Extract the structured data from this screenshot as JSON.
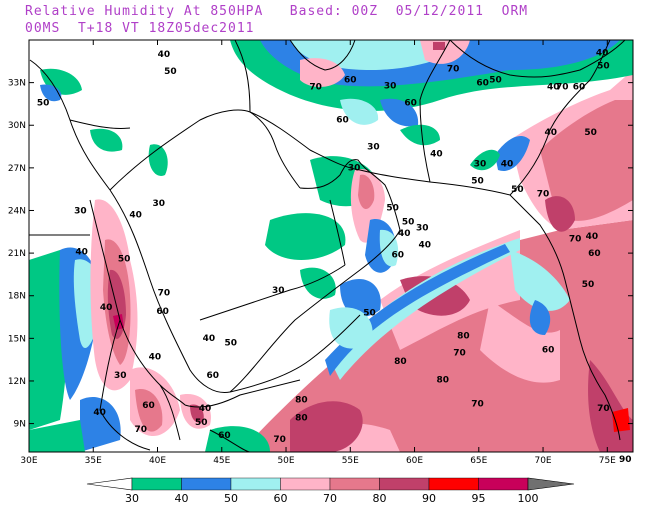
{
  "title": {
    "line1": "Relative Humidity At 850HPA   Based: 00Z  05/12/2011  ORM",
    "line2": "00MS  T+18 VT 18Z05dec2011"
  },
  "map": {
    "lon_range": [
      30,
      77
    ],
    "lat_range": [
      7,
      36
    ],
    "x_ticks": [
      "30E",
      "35E",
      "40E",
      "45E",
      "50E",
      "55E",
      "60E",
      "65E",
      "70E",
      "75E"
    ],
    "y_ticks": [
      "33N",
      "30N",
      "27N",
      "24N",
      "21N",
      "18N",
      "15N",
      "12N",
      "9N"
    ],
    "contour_labels": [
      {
        "t": "40",
        "lon": 40.5,
        "lat": 34.8
      },
      {
        "t": "50",
        "lon": 41.0,
        "lat": 33.6
      },
      {
        "t": "70",
        "lon": 52.3,
        "lat": 32.5
      },
      {
        "t": "60",
        "lon": 55.0,
        "lat": 33.0
      },
      {
        "t": "70",
        "lon": 63.0,
        "lat": 33.8
      },
      {
        "t": "60",
        "lon": 65.3,
        "lat": 32.8
      },
      {
        "t": "50",
        "lon": 66.3,
        "lat": 33.0
      },
      {
        "t": "40",
        "lon": 70.8,
        "lat": 32.5
      },
      {
        "t": "70",
        "lon": 71.5,
        "lat": 32.5
      },
      {
        "t": "60",
        "lon": 72.8,
        "lat": 32.5
      },
      {
        "t": "50",
        "lon": 74.7,
        "lat": 34.0
      },
      {
        "t": "40",
        "lon": 74.6,
        "lat": 34.9
      },
      {
        "t": "50",
        "lon": 31.1,
        "lat": 31.4
      },
      {
        "t": "60",
        "lon": 54.4,
        "lat": 30.2
      },
      {
        "t": "30",
        "lon": 58.1,
        "lat": 32.6
      },
      {
        "t": "60",
        "lon": 59.7,
        "lat": 31.4
      },
      {
        "t": "30",
        "lon": 56.8,
        "lat": 28.3
      },
      {
        "t": "40",
        "lon": 61.7,
        "lat": 27.8
      },
      {
        "t": "30",
        "lon": 65.1,
        "lat": 27.1
      },
      {
        "t": "40",
        "lon": 67.2,
        "lat": 27.1
      },
      {
        "t": "40",
        "lon": 70.6,
        "lat": 29.3
      },
      {
        "t": "50",
        "lon": 73.7,
        "lat": 29.3
      },
      {
        "t": "30",
        "lon": 55.3,
        "lat": 26.8
      },
      {
        "t": "50",
        "lon": 68.0,
        "lat": 25.3
      },
      {
        "t": "30",
        "lon": 34.0,
        "lat": 23.8
      },
      {
        "t": "40",
        "lon": 38.3,
        "lat": 23.5
      },
      {
        "t": "30",
        "lon": 40.1,
        "lat": 24.3
      },
      {
        "t": "50",
        "lon": 64.9,
        "lat": 25.9
      },
      {
        "t": "70",
        "lon": 70.0,
        "lat": 25.0
      },
      {
        "t": "30",
        "lon": 60.6,
        "lat": 22.6
      },
      {
        "t": "40",
        "lon": 34.1,
        "lat": 20.9
      },
      {
        "t": "50",
        "lon": 37.4,
        "lat": 20.4
      },
      {
        "t": "50",
        "lon": 58.3,
        "lat": 24.0
      },
      {
        "t": "50",
        "lon": 59.5,
        "lat": 23.0
      },
      {
        "t": "40",
        "lon": 59.2,
        "lat": 22.2
      },
      {
        "t": "60",
        "lon": 58.7,
        "lat": 20.7
      },
      {
        "t": "40",
        "lon": 60.8,
        "lat": 21.4
      },
      {
        "t": "60",
        "lon": 74.0,
        "lat": 20.8
      },
      {
        "t": "40",
        "lon": 73.8,
        "lat": 22.0
      },
      {
        "t": "70",
        "lon": 72.5,
        "lat": 21.8
      },
      {
        "t": "40",
        "lon": 36.0,
        "lat": 17.0
      },
      {
        "t": "70",
        "lon": 40.5,
        "lat": 18.0
      },
      {
        "t": "30",
        "lon": 49.4,
        "lat": 18.2
      },
      {
        "t": "50",
        "lon": 73.5,
        "lat": 18.6
      },
      {
        "t": "50",
        "lon": 56.5,
        "lat": 16.6
      },
      {
        "t": "80",
        "lon": 63.8,
        "lat": 15.0
      },
      {
        "t": "60",
        "lon": 40.4,
        "lat": 16.7
      },
      {
        "t": "70",
        "lon": 63.5,
        "lat": 13.8
      },
      {
        "t": "60",
        "lon": 70.4,
        "lat": 14.0
      },
      {
        "t": "30",
        "lon": 37.1,
        "lat": 12.2
      },
      {
        "t": "60",
        "lon": 44.3,
        "lat": 12.2
      },
      {
        "t": "80",
        "lon": 62.2,
        "lat": 11.9
      },
      {
        "t": "40",
        "lon": 35.5,
        "lat": 9.6
      },
      {
        "t": "40",
        "lon": 43.7,
        "lat": 9.9
      },
      {
        "t": "50",
        "lon": 43.4,
        "lat": 8.9
      },
      {
        "t": "60",
        "lon": 45.2,
        "lat": 8.0
      },
      {
        "t": "80",
        "lon": 51.2,
        "lat": 9.2
      },
      {
        "t": "70",
        "lon": 64.9,
        "lat": 10.2
      },
      {
        "t": "70",
        "lon": 49.5,
        "lat": 7.7
      },
      {
        "t": "70",
        "lon": 74.7,
        "lat": 9.9
      },
      {
        "t": "60",
        "lon": 39.3,
        "lat": 10.1
      },
      {
        "t": "70",
        "lon": 38.7,
        "lat": 8.4
      },
      {
        "t": "40",
        "lon": 39.8,
        "lat": 13.5
      },
      {
        "t": "50",
        "lon": 45.7,
        "lat": 14.5
      },
      {
        "t": "80",
        "lon": 51.2,
        "lat": 10.5
      },
      {
        "t": "40",
        "lon": 44.0,
        "lat": 14.8
      },
      {
        "t": "80",
        "lon": 58.9,
        "lat": 13.2
      },
      {
        "t": "90",
        "lon": 76.4,
        "lat": 6.3
      }
    ]
  },
  "legend": {
    "levels": [
      "30",
      "40",
      "50",
      "60",
      "70",
      "80",
      "90",
      "95",
      "100"
    ],
    "colors": {
      "c30_40": "#00c884",
      "c40_50": "#2d82e6",
      "c50_60": "#a0f0f0",
      "c60_70": "#ffb4c8",
      "c70_80": "#e6788c",
      "c80_90": "#c0406a",
      "c90_95": "#ff0000",
      "c95_100": "#c8005a",
      "below": "#ffffff",
      "above": "#707070"
    }
  }
}
